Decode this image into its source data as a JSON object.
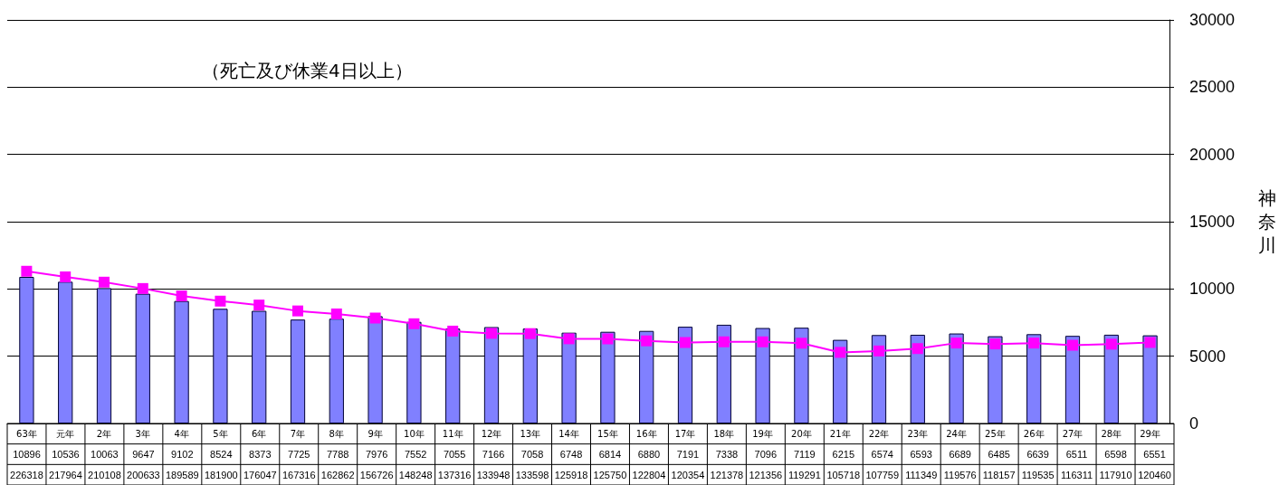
{
  "chart_data": {
    "type": "bar",
    "title": "（死亡及び休業4日以上）",
    "ylabel": "神奈川",
    "categories": [
      "63年",
      "元年",
      "2年",
      "3年",
      "4年",
      "5年",
      "6年",
      "7年",
      "8年",
      "9年",
      "10年",
      "11年",
      "12年",
      "13年",
      "14年",
      "15年",
      "16年",
      "17年",
      "18年",
      "19年",
      "20年",
      "21年",
      "22年",
      "23年",
      "24年",
      "25年",
      "26年",
      "27年",
      "28年",
      "29年"
    ],
    "series": [
      {
        "color": "#8080ff",
        "values": [
          10896,
          10536,
          10063,
          9647,
          9102,
          8524,
          8373,
          7725,
          7788,
          7976,
          7552,
          7055,
          7166,
          7058,
          6748,
          6814,
          6880,
          7191,
          7338,
          7096,
          7119,
          6215,
          6574,
          6593,
          6689,
          6485,
          6639,
          6511,
          6598,
          6551
        ]
      },
      {
        "type": "line",
        "color": "#ff00ff",
        "axis": "y2",
        "marker": "square",
        "values": [
          226318,
          217964,
          210108,
          200633,
          189589,
          181900,
          176047,
          167316,
          162862,
          156726,
          148248,
          137316,
          133948,
          133598,
          125918,
          125750,
          122804,
          120354,
          121378,
          121356,
          119291,
          105718,
          107759,
          111349,
          119576,
          118157,
          119535,
          116311,
          117910,
          120460
        ]
      }
    ],
    "ylim": [
      0,
      30000
    ],
    "yticks": [
      0,
      5000,
      10000,
      15000,
      20000,
      25000,
      30000
    ],
    "y2lim": [
      0,
      600000
    ],
    "grid": "y",
    "data_labels": true
  }
}
